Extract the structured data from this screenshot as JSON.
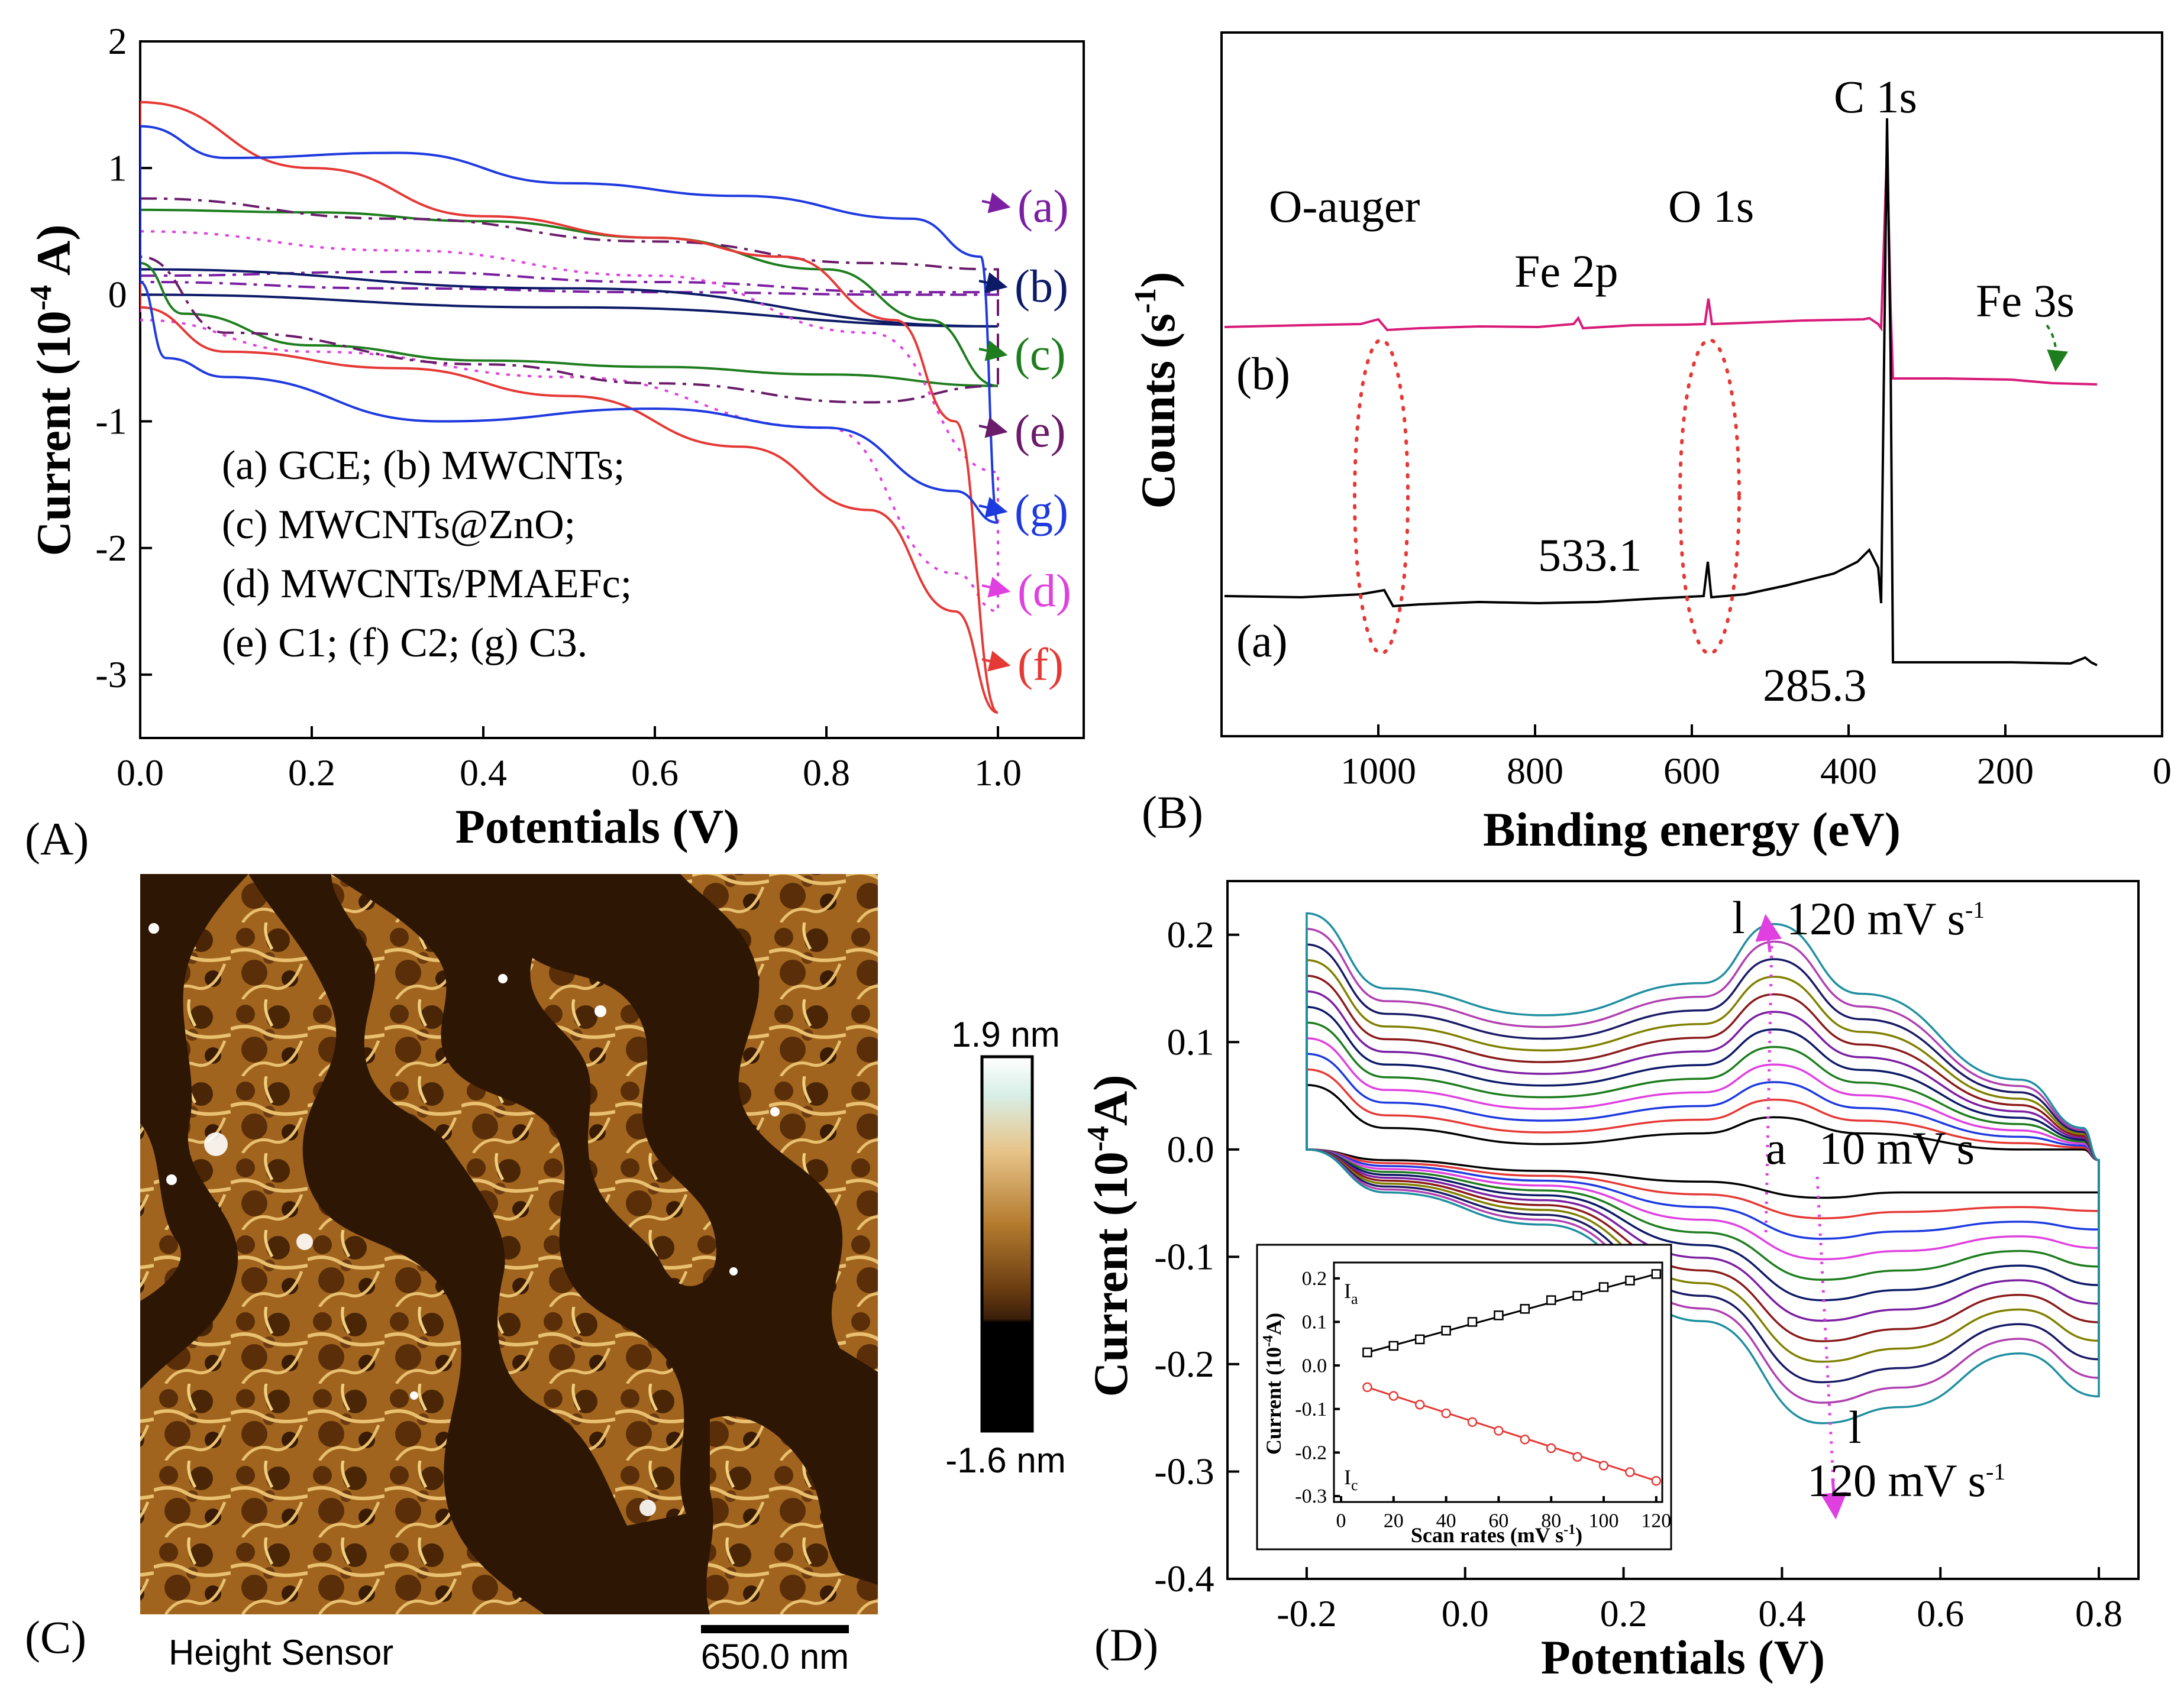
{
  "chart_data": [
    {
      "panel": "(A)",
      "type": "line",
      "xlabel": "Potentials (V)",
      "ylabel": "Current (10",
      "ylabel_sup": "-4",
      "ylabel_tail": " A)",
      "xlim": [
        0.0,
        1.1
      ],
      "ylim": [
        -3.5,
        2.0
      ],
      "x_ticks": [
        "0.0",
        "0.2",
        "0.4",
        "0.6",
        "0.8",
        "1.0"
      ],
      "y_ticks": [
        "2",
        "1",
        "0",
        "-1",
        "-2",
        "-3"
      ],
      "legend": [
        "(a) GCE; (b) MWCNTs;",
        "(c) MWCNTs@ZnO;",
        "(d) MWCNTs/PMAEFc;",
        "(e) C1;  (f) C2;  (g) C3."
      ],
      "series": [
        {
          "name": "(a)",
          "color": "#7b1fa2",
          "style": "dashdot",
          "upper": [
            [
              0,
              0.15
            ],
            [
              0.3,
              0.18
            ],
            [
              0.6,
              0.1
            ],
            [
              0.9,
              0.02
            ],
            [
              1.0,
              0.02
            ]
          ],
          "lower": [
            [
              0,
              0.1
            ],
            [
              0.3,
              0.05
            ],
            [
              0.6,
              0.02
            ],
            [
              0.9,
              0.0
            ],
            [
              1.0,
              0.0
            ]
          ]
        },
        {
          "name": "(b)",
          "color": "#0d1a66",
          "style": "solid",
          "upper": [
            [
              0,
              0.2
            ],
            [
              0.5,
              0.05
            ],
            [
              1.0,
              -0.25
            ]
          ],
          "lower": [
            [
              0,
              0.0
            ],
            [
              0.5,
              -0.1
            ],
            [
              1.0,
              -0.25
            ]
          ]
        },
        {
          "name": "(c)",
          "color": "#1e7d1e",
          "style": "solid",
          "upper": [
            [
              0,
              0.67
            ],
            [
              0.2,
              0.65
            ],
            [
              0.4,
              0.58
            ],
            [
              0.6,
              0.45
            ],
            [
              0.8,
              0.2
            ],
            [
              0.92,
              -0.2
            ],
            [
              1.0,
              -0.72
            ]
          ],
          "lower": [
            [
              0,
              0.25
            ],
            [
              0.05,
              -0.15
            ],
            [
              0.2,
              -0.4
            ],
            [
              0.4,
              -0.52
            ],
            [
              0.6,
              -0.57
            ],
            [
              0.8,
              -0.63
            ],
            [
              1.0,
              -0.72
            ]
          ]
        },
        {
          "name": "(d)",
          "color": "#e040e0",
          "style": "dotted",
          "upper": [
            [
              0,
              0.5
            ],
            [
              0.3,
              0.35
            ],
            [
              0.6,
              0.15
            ],
            [
              0.85,
              -0.3
            ],
            [
              1.0,
              -1.4
            ]
          ],
          "lower": [
            [
              0,
              -0.2
            ],
            [
              0.2,
              -0.45
            ],
            [
              0.5,
              -0.65
            ],
            [
              0.8,
              -1.05
            ],
            [
              0.95,
              -2.2
            ],
            [
              1.0,
              -2.5
            ]
          ]
        },
        {
          "name": "(e)",
          "color": "#6a1b6a",
          "style": "dashdot",
          "upper": [
            [
              0,
              0.76
            ],
            [
              0.3,
              0.6
            ],
            [
              0.6,
              0.42
            ],
            [
              0.85,
              0.25
            ],
            [
              1.0,
              0.2
            ]
          ],
          "lower": [
            [
              0,
              0.3
            ],
            [
              0.1,
              -0.3
            ],
            [
              0.4,
              -0.55
            ],
            [
              0.6,
              -0.7
            ],
            [
              0.85,
              -0.85
            ],
            [
              1.0,
              -0.72
            ]
          ]
        },
        {
          "name": "(f)",
          "color": "#e53935",
          "style": "solid",
          "upper": [
            [
              0,
              1.52
            ],
            [
              0.2,
              1.0
            ],
            [
              0.4,
              0.62
            ],
            [
              0.6,
              0.45
            ],
            [
              0.75,
              0.3
            ],
            [
              0.88,
              -0.2
            ],
            [
              0.95,
              -1.0
            ],
            [
              1.0,
              -3.3
            ]
          ],
          "lower": [
            [
              0,
              -0.1
            ],
            [
              0.1,
              -0.45
            ],
            [
              0.3,
              -0.58
            ],
            [
              0.5,
              -0.8
            ],
            [
              0.7,
              -1.2
            ],
            [
              0.85,
              -1.7
            ],
            [
              0.95,
              -2.5
            ],
            [
              1.0,
              -3.3
            ]
          ]
        },
        {
          "name": "(g)",
          "color": "#1e3adf",
          "style": "solid",
          "upper": [
            [
              0,
              1.33
            ],
            [
              0.1,
              1.08
            ],
            [
              0.3,
              1.12
            ],
            [
              0.5,
              0.88
            ],
            [
              0.7,
              0.78
            ],
            [
              0.9,
              0.6
            ],
            [
              0.98,
              0.3
            ],
            [
              1.0,
              -1.8
            ]
          ],
          "lower": [
            [
              0,
              0.1
            ],
            [
              0.03,
              -0.5
            ],
            [
              0.1,
              -0.65
            ],
            [
              0.35,
              -1.0
            ],
            [
              0.6,
              -0.9
            ],
            [
              0.8,
              -1.05
            ],
            [
              0.95,
              -1.55
            ],
            [
              1.0,
              -1.8
            ]
          ]
        }
      ]
    },
    {
      "panel": "(B)",
      "type": "line",
      "xlabel": "Binding energy (eV)",
      "ylabel": "Counts (s",
      "ylabel_sup": "-1",
      "ylabel_tail": ")",
      "xlim": [
        1200,
        0
      ],
      "x_ticks": [
        "1000",
        "800",
        "600",
        "400",
        "200",
        "0"
      ],
      "annotations": [
        "O-auger",
        "Fe 2p",
        "O 1s",
        "C 1s",
        "Fe 3s",
        "533.1",
        "285.3"
      ],
      "series_labels": [
        "(b)",
        "(a)"
      ]
    },
    {
      "panel": "(C)",
      "type": "heatmap",
      "colorbar_max": "1.9 nm",
      "colorbar_min": "-1.6 nm",
      "channel": "Height Sensor",
      "scale_bar": "650.0 nm"
    },
    {
      "panel": "(D)",
      "type": "line",
      "xlabel": "Potentials (V)",
      "ylabel": "Current (10",
      "ylabel_sup": "-4",
      "ylabel_tail": "A)",
      "xlim": [
        -0.3,
        0.85
      ],
      "ylim": [
        -0.4,
        0.25
      ],
      "x_ticks": [
        "-0.2",
        "0.0",
        "0.2",
        "0.4",
        "0.6",
        "0.8"
      ],
      "y_ticks": [
        "0.2",
        "0.1",
        "0.0",
        "-0.1",
        "-0.2",
        "-0.3",
        "-0.4"
      ],
      "scan_rates_mV_s": [
        10,
        20,
        30,
        40,
        50,
        60,
        70,
        80,
        90,
        100,
        110,
        120
      ],
      "colors": [
        "#000000",
        "#e53935",
        "#1e3adf",
        "#e040e0",
        "#1e7d1e",
        "#0d1a66",
        "#7b1fa2",
        "#8b1a1a",
        "#808000",
        "#1a1a66",
        "#b040b0",
        "#1f8fa0"
      ],
      "annotations": [
        "l",
        "120 mV s",
        "-1",
        "a",
        "10 mV s",
        "l",
        "120 mV s",
        "-1"
      ],
      "inset": {
        "xlabel": "Scan rates (mV s",
        "xlabel_sup": "-1",
        "xlabel_tail": ")",
        "ylabel": "Current (10",
        "ylabel_sup": "-4",
        "ylabel_tail": "A)",
        "x_ticks": [
          "0",
          "20",
          "40",
          "60",
          "80",
          "100",
          "120"
        ],
        "y_ticks": [
          "0.2",
          "0.1",
          "0.0",
          "-0.1",
          "-0.2",
          "-0.3"
        ],
        "Ia_label": "I",
        "Ia_sub": "a",
        "Ic_label": "I",
        "Ic_sub": "c",
        "x": [
          10,
          20,
          30,
          40,
          50,
          60,
          70,
          80,
          90,
          100,
          110,
          120
        ],
        "Ia": [
          0.03,
          0.045,
          0.06,
          0.08,
          0.1,
          0.115,
          0.13,
          0.15,
          0.16,
          0.18,
          0.195,
          0.21
        ],
        "Ic": [
          -0.05,
          -0.07,
          -0.09,
          -0.11,
          -0.13,
          -0.15,
          -0.17,
          -0.19,
          -0.21,
          -0.23,
          -0.245,
          -0.265
        ]
      }
    }
  ],
  "panel_labels": {
    "A": "(A)",
    "B": "(B)",
    "C": "(C)",
    "D": "(D)"
  }
}
